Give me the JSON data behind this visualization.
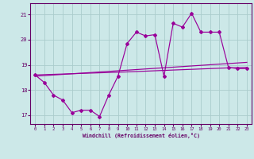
{
  "xlabel": "Windchill (Refroidissement éolien,°C)",
  "bg_color": "#cce8e8",
  "line_color": "#990099",
  "grid_color": "#aacccc",
  "x_ticks": [
    0,
    1,
    2,
    3,
    4,
    5,
    6,
    7,
    8,
    9,
    10,
    11,
    12,
    13,
    14,
    15,
    16,
    17,
    18,
    19,
    20,
    21,
    22,
    23
  ],
  "y_ticks": [
    17,
    18,
    19,
    20,
    21
  ],
  "xlim": [
    -0.5,
    23.5
  ],
  "ylim": [
    16.65,
    21.45
  ],
  "series_main": {
    "x": [
      0,
      1,
      2,
      3,
      4,
      5,
      6,
      7,
      8,
      9,
      10,
      11,
      12,
      13,
      14,
      15,
      16,
      17,
      18,
      19,
      20,
      21,
      22,
      23
    ],
    "y": [
      18.6,
      18.3,
      17.8,
      17.6,
      17.1,
      17.2,
      17.2,
      16.95,
      17.8,
      18.55,
      19.85,
      20.3,
      20.15,
      20.2,
      18.55,
      20.65,
      20.5,
      21.05,
      20.3,
      20.3,
      20.3,
      18.9,
      18.85,
      18.85
    ]
  },
  "series_smooth1": {
    "x": [
      0,
      23
    ],
    "y": [
      18.55,
      19.1
    ]
  },
  "series_smooth2": {
    "x": [
      0,
      10,
      14,
      21,
      23
    ],
    "y": [
      18.6,
      18.72,
      18.78,
      18.88,
      18.9
    ]
  }
}
